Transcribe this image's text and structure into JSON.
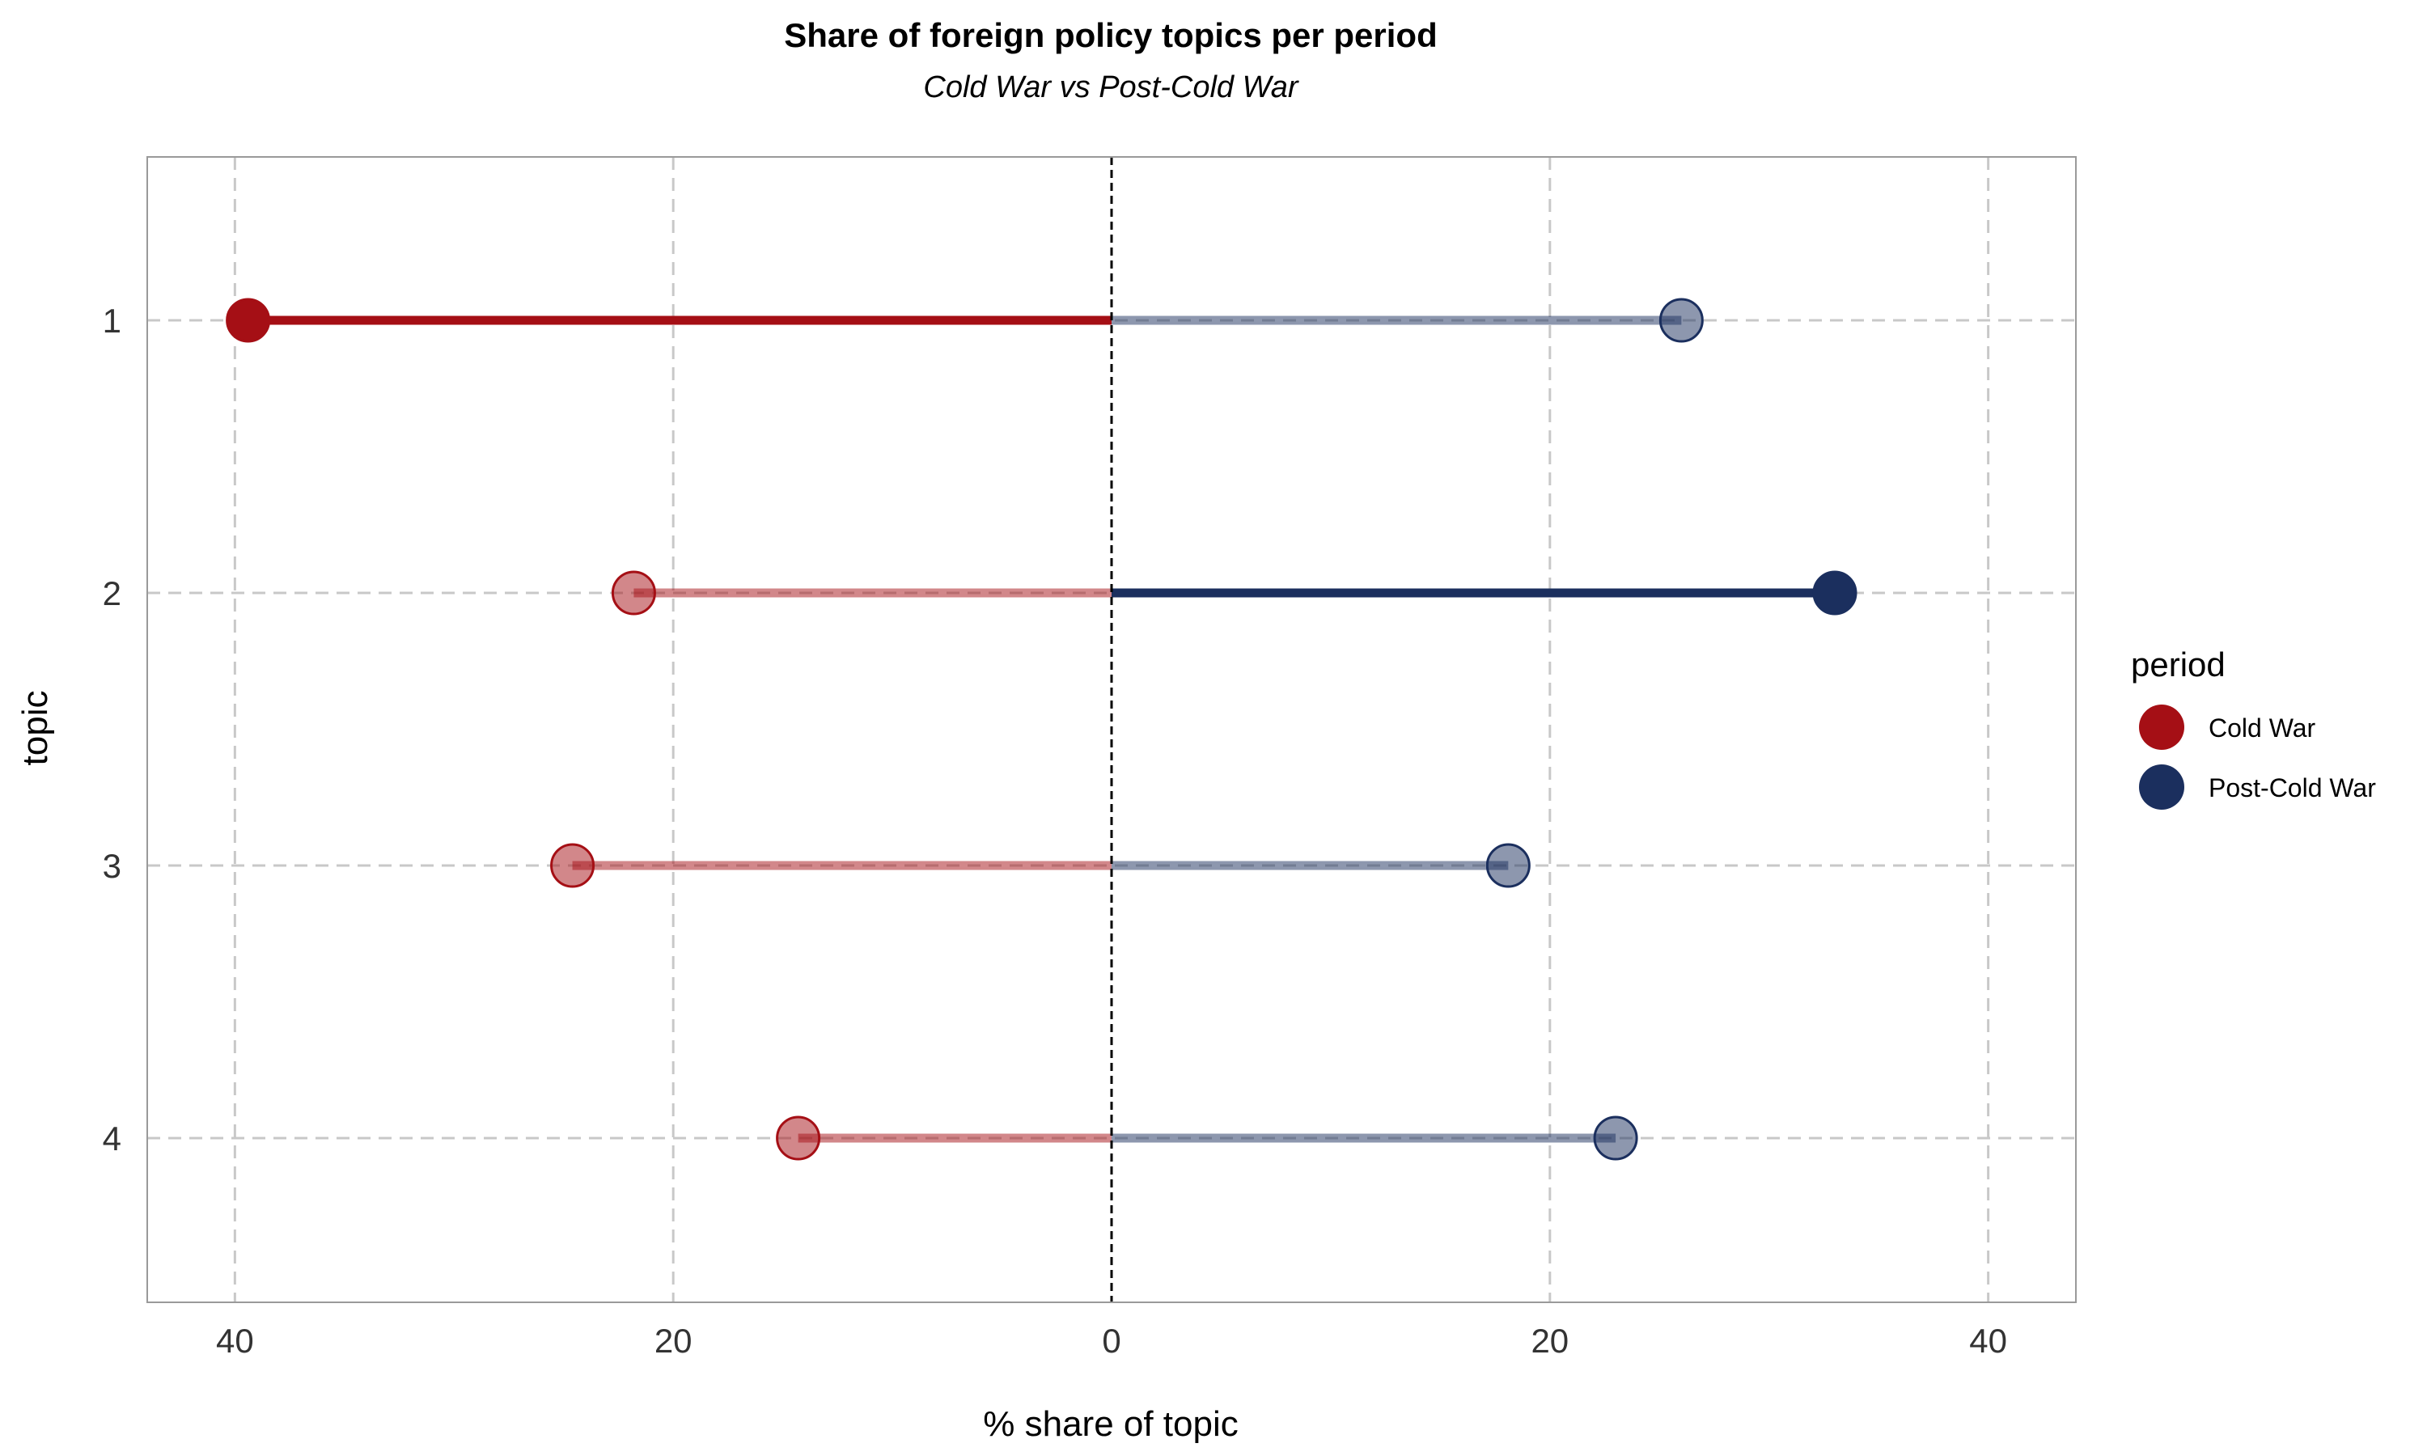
{
  "chart_data": {
    "type": "lollipop",
    "title": "Share of foreign policy topics per period",
    "subtitle": "Cold War vs Post-Cold War",
    "xlabel": "% share of topic",
    "ylabel": "topic",
    "xlim": [
      -44,
      44
    ],
    "x_ticks": [
      -40,
      -20,
      0,
      20,
      40
    ],
    "x_tick_labels": [
      "40",
      "20",
      "0",
      "20",
      "40"
    ],
    "categories": [
      "1",
      "2",
      "3",
      "4"
    ],
    "series": [
      {
        "name": "Cold War",
        "color": "#a50f15",
        "direction": "left",
        "values": [
          39.4,
          21.8,
          24.6,
          14.3
        ]
      },
      {
        "name": "Post-Cold War",
        "color": "#1b2f5e",
        "direction": "right",
        "values": [
          26.0,
          33.0,
          18.1,
          23.0
        ]
      }
    ],
    "highlight": {
      "1": "Cold War",
      "2": "Post-Cold War"
    },
    "legend": {
      "title": "period",
      "position": "right"
    },
    "grid": true
  }
}
